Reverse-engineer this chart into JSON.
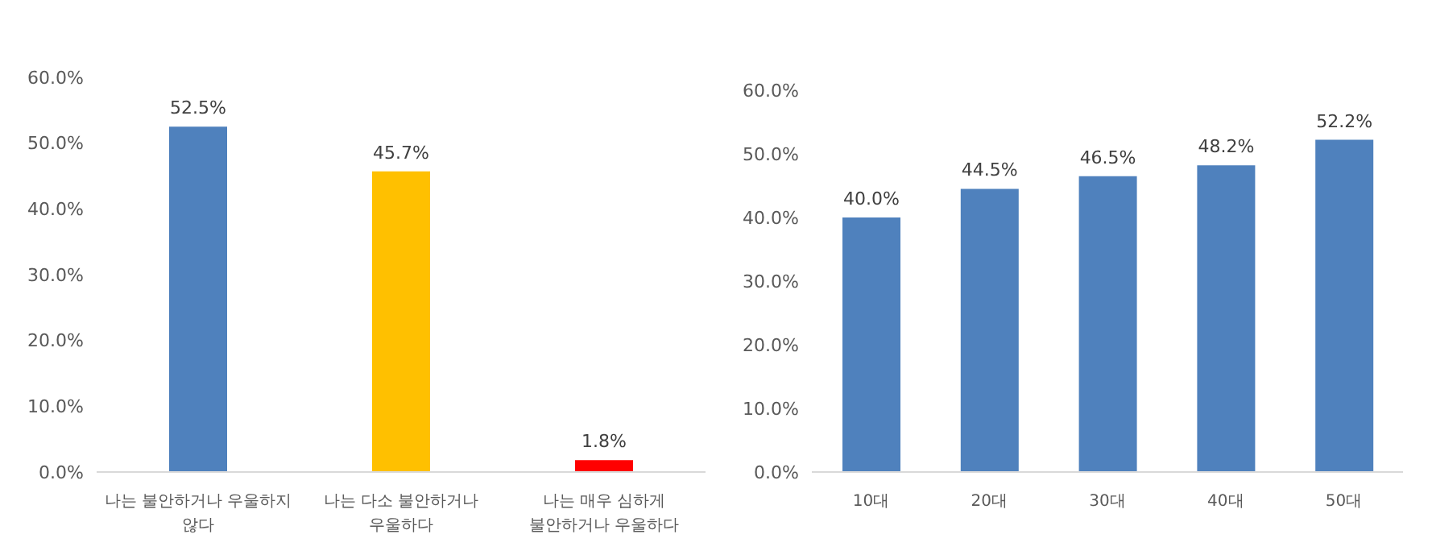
{
  "chart_data": [
    {
      "type": "bar",
      "categories": [
        "나는 불안하거나 우울하지 않다",
        "나는 다소 불안하거나 우울하다",
        "나는 매우 심하게 불안하거나 우울하다"
      ],
      "values": [
        52.5,
        45.7,
        1.8
      ],
      "colors": [
        "#4f81bd",
        "#ffc000",
        "#ff0000"
      ],
      "value_labels": [
        "52.5%",
        "45.7%",
        "1.8%"
      ],
      "ylim": [
        0,
        60
      ],
      "yticks": [
        {
          "value": 0,
          "label": "0.0%"
        },
        {
          "value": 10,
          "label": "10.0%"
        },
        {
          "value": 20,
          "label": "20.0%"
        },
        {
          "value": 30,
          "label": "30.0%"
        },
        {
          "value": 40,
          "label": "40.0%"
        },
        {
          "value": 50,
          "label": "50.0%"
        },
        {
          "value": 60,
          "label": "60.0%"
        }
      ],
      "grid": false,
      "legend": false
    },
    {
      "type": "bar",
      "categories": [
        "10대",
        "20대",
        "30대",
        "40대",
        "50대"
      ],
      "values": [
        40.0,
        44.5,
        46.5,
        48.2,
        52.2
      ],
      "color": "#4f81bd",
      "value_labels": [
        "40.0%",
        "44.5%",
        "46.5%",
        "48.2%",
        "52.2%"
      ],
      "ylim": [
        0,
        60
      ],
      "yticks": [
        {
          "value": 0,
          "label": "0.0%"
        },
        {
          "value": 10,
          "label": "10.0%"
        },
        {
          "value": 20,
          "label": "20.0%"
        },
        {
          "value": 30,
          "label": "30.0%"
        },
        {
          "value": 40,
          "label": "40.0%"
        },
        {
          "value": 50,
          "label": "50.0%"
        },
        {
          "value": 60,
          "label": "60.0%"
        }
      ],
      "grid": false,
      "legend": false
    }
  ]
}
